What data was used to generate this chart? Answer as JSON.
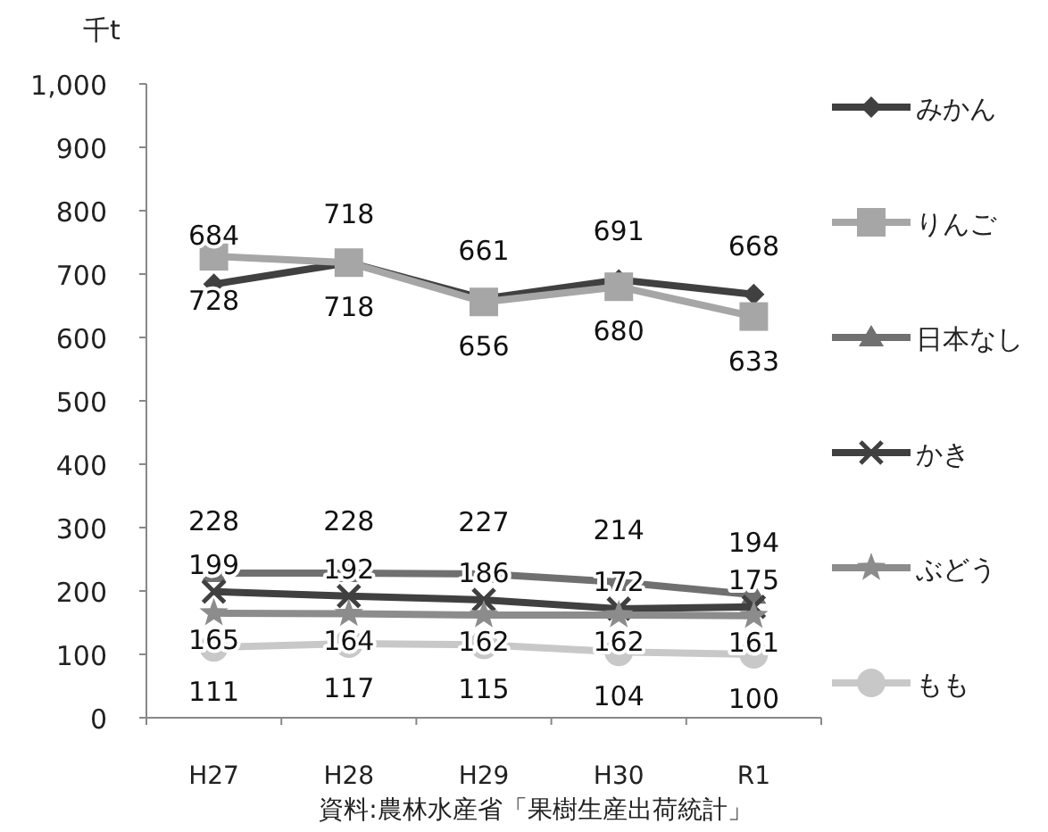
{
  "chart_data": {
    "type": "line",
    "ylabel": "千t",
    "categories": [
      "H27",
      "H28",
      "H29",
      "H30",
      "R1"
    ],
    "series": [
      {
        "name": "みかん",
        "color": "#404040",
        "marker": "diamond",
        "values": [
          684,
          718,
          661,
          691,
          668
        ]
      },
      {
        "name": "りんご",
        "color": "#a6a6a6",
        "marker": "square",
        "values": [
          728,
          718,
          656,
          680,
          633
        ]
      },
      {
        "name": "日本なし",
        "color": "#707070",
        "marker": "triangle",
        "values": [
          228,
          228,
          227,
          214,
          194
        ]
      },
      {
        "name": "かき",
        "color": "#404040",
        "marker": "cross",
        "values": [
          199,
          192,
          186,
          172,
          175
        ]
      },
      {
        "name": "ぶどう",
        "color": "#8c8c8c",
        "marker": "star",
        "values": [
          165,
          164,
          162,
          162,
          161
        ]
      },
      {
        "name": "もも",
        "color": "#c8c8c8",
        "marker": "circle",
        "values": [
          111,
          117,
          115,
          104,
          100
        ]
      }
    ],
    "ylim": [
      0,
      1000
    ],
    "yticks": [
      0,
      100,
      200,
      300,
      400,
      500,
      600,
      700,
      800,
      900,
      {
        "value": 1000,
        "label": "1,000"
      }
    ],
    "grid": false,
    "legend": "right",
    "data_labels": true,
    "line_style": "solid",
    "annotations": [
      "資料:農林水産省「果樹生産出荷統計」"
    ]
  }
}
